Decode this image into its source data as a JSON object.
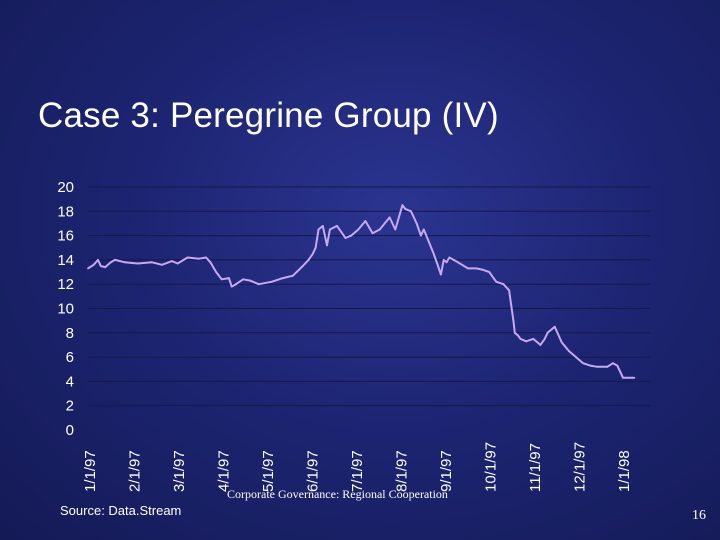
{
  "slide": {
    "title": "Case 3: Peregrine Group (IV)",
    "footer": "Corporate Governance: Regional Cooperation",
    "source": "Source: Data.Stream",
    "page_number": "16"
  },
  "colors": {
    "background": "#1d2573",
    "line": "#c8a8f2",
    "grid": "#14184a",
    "text": "#ffffff"
  },
  "chart_data": {
    "type": "line",
    "title": "",
    "xlabel": "",
    "ylabel": "",
    "ylim": [
      0,
      20
    ],
    "yticks": [
      0,
      2,
      4,
      6,
      8,
      10,
      12,
      14,
      16,
      18,
      20
    ],
    "x_tick_labels": [
      "1/1/97",
      "2/1/97",
      "3/1/97",
      "4/1/97",
      "5/1/97",
      "6/1/97",
      "7/1/97",
      "8/1/97",
      "9/1/97",
      "10/1/97",
      "11/1/97",
      "12/1/97",
      "1/1/98"
    ],
    "grid": true,
    "legend": "none",
    "series": [
      {
        "x": [
          "1997-01-01",
          "1997-01-05",
          "1997-01-08",
          "1997-01-10",
          "1997-01-13",
          "1997-01-17",
          "1997-01-20",
          "1997-01-27",
          "1997-02-05",
          "1997-02-15",
          "1997-02-22",
          "1997-03-01",
          "1997-03-05",
          "1997-03-12",
          "1997-03-20",
          "1997-03-25",
          "1997-03-28",
          "1997-04-01",
          "1997-04-05",
          "1997-04-10",
          "1997-04-12",
          "1997-04-15",
          "1997-04-20",
          "1997-04-25",
          "1997-05-01",
          "1997-05-10",
          "1997-05-18",
          "1997-05-25",
          "1997-06-01",
          "1997-06-05",
          "1997-06-08",
          "1997-06-10",
          "1997-06-12",
          "1997-06-15",
          "1997-06-18",
          "1997-06-20",
          "1997-06-25",
          "1997-07-01",
          "1997-07-05",
          "1997-07-10",
          "1997-07-15",
          "1997-07-20",
          "1997-07-25",
          "1997-08-01",
          "1997-08-05",
          "1997-08-10",
          "1997-08-12",
          "1997-08-16",
          "1997-08-20",
          "1997-08-23",
          "1997-08-25",
          "1997-09-01",
          "1997-09-04",
          "1997-09-06",
          "1997-09-08",
          "1997-09-10",
          "1997-09-12",
          "1997-09-18",
          "1997-09-25",
          "1997-10-01",
          "1997-10-05",
          "1997-10-10",
          "1997-10-15",
          "1997-10-20",
          "1997-10-24",
          "1997-10-27",
          "1997-10-28",
          "1997-10-30",
          "1997-11-01",
          "1997-11-05",
          "1997-11-10",
          "1997-11-15",
          "1997-11-18",
          "1997-11-20",
          "1997-11-25",
          "1997-11-30",
          "1997-12-05",
          "1997-12-10",
          "1997-12-15",
          "1997-12-20",
          "1997-12-25",
          "1998-01-01",
          "1998-01-05",
          "1998-01-08",
          "1998-01-12",
          "1998-01-15",
          "1998-01-20"
        ],
        "values": [
          13.3,
          13.6,
          14.0,
          13.5,
          13.4,
          13.8,
          14.0,
          13.8,
          13.7,
          13.8,
          13.6,
          13.9,
          13.7,
          14.2,
          14.1,
          14.2,
          13.8,
          13.0,
          12.4,
          12.5,
          11.8,
          12.0,
          12.4,
          12.3,
          12.0,
          12.2,
          12.5,
          12.7,
          13.5,
          14.0,
          14.5,
          15.0,
          16.5,
          16.8,
          15.2,
          16.5,
          16.8,
          15.8,
          16.0,
          16.5,
          17.2,
          16.2,
          16.5,
          17.5,
          16.5,
          18.5,
          18.2,
          18.0,
          17.0,
          16.0,
          16.5,
          14.5,
          13.5,
          12.8,
          14.0,
          13.8,
          14.2,
          13.8,
          13.3,
          13.3,
          13.2,
          13.0,
          12.2,
          12.0,
          11.5,
          9.0,
          8.0,
          7.8,
          7.5,
          7.3,
          7.5,
          7.0,
          7.5,
          8.0,
          8.5,
          7.2,
          6.5,
          6.0,
          5.5,
          5.3,
          5.2,
          5.2,
          5.5,
          5.3,
          4.3,
          4.3,
          4.3
        ]
      }
    ]
  }
}
